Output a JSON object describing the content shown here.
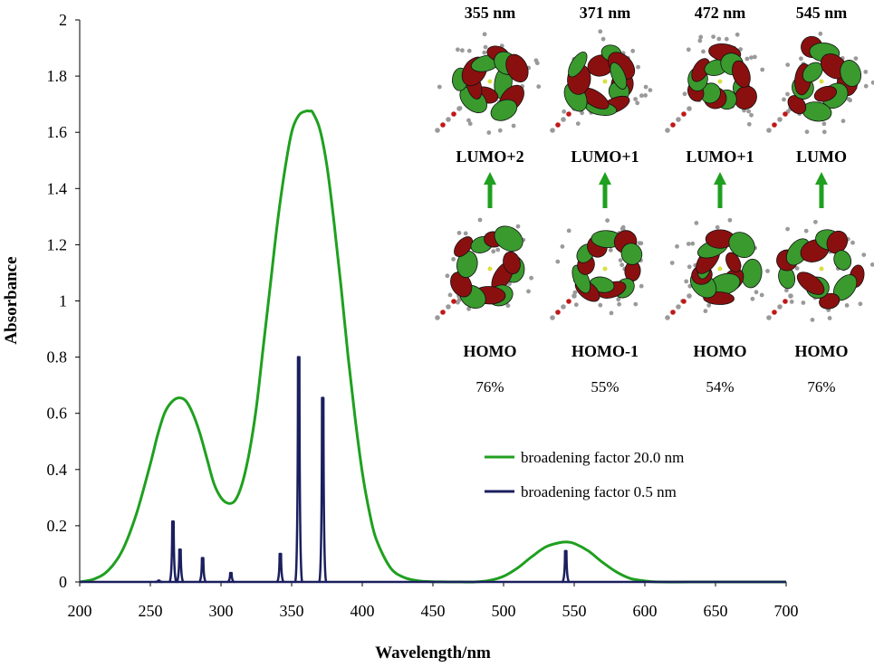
{
  "chart_data": {
    "type": "line",
    "xlabel": "Wavelength/nm",
    "ylabel": "Absorbance",
    "xlim": [
      200,
      700
    ],
    "ylim": [
      0,
      2
    ],
    "xticks": [
      "200",
      "250",
      "300",
      "350",
      "400",
      "450",
      "500",
      "550",
      "600",
      "650",
      "700"
    ],
    "yticks": [
      "0",
      "0.2",
      "0.4",
      "0.6",
      "0.8",
      "1",
      "1.2",
      "1.4",
      "1.6",
      "1.8",
      "2"
    ],
    "grid": false,
    "legend_position": "right",
    "series": [
      {
        "name": "broadening factor 20.0 nm",
        "color": "#1fa01f",
        "kind": "smooth",
        "x": [
          200,
          210,
          220,
          230,
          240,
          250,
          255,
          260,
          265,
          270,
          275,
          280,
          285,
          290,
          295,
          300,
          305,
          310,
          315,
          320,
          325,
          330,
          335,
          340,
          345,
          350,
          355,
          360,
          363,
          365,
          370,
          375,
          380,
          385,
          390,
          395,
          400,
          405,
          410,
          420,
          430,
          440,
          450,
          460,
          470,
          480,
          490,
          500,
          510,
          520,
          530,
          540,
          545,
          550,
          560,
          570,
          580,
          590,
          600,
          610,
          650,
          700
        ],
        "y": [
          0.0,
          0.01,
          0.04,
          0.11,
          0.24,
          0.42,
          0.52,
          0.6,
          0.64,
          0.655,
          0.645,
          0.6,
          0.53,
          0.44,
          0.35,
          0.3,
          0.28,
          0.29,
          0.35,
          0.46,
          0.62,
          0.84,
          1.06,
          1.28,
          1.46,
          1.6,
          1.66,
          1.675,
          1.675,
          1.67,
          1.61,
          1.48,
          1.28,
          1.05,
          0.8,
          0.58,
          0.39,
          0.25,
          0.15,
          0.05,
          0.015,
          0.004,
          0.001,
          0.0,
          0.0,
          0.0,
          0.005,
          0.02,
          0.05,
          0.09,
          0.125,
          0.14,
          0.142,
          0.137,
          0.11,
          0.07,
          0.035,
          0.012,
          0.004,
          0.0,
          0.0,
          0.0
        ]
      },
      {
        "name": "broadening factor 0.5 nm",
        "color": "#1b1f5e",
        "kind": "sticks",
        "x": [
          256,
          266,
          271,
          287,
          307,
          342,
          355,
          372,
          544
        ],
        "y": [
          0.005,
          0.215,
          0.115,
          0.085,
          0.032,
          0.1,
          0.8,
          0.655,
          0.11
        ]
      }
    ],
    "annotations": [
      {
        "wavelength": "355 nm",
        "upper": "LUMO+2",
        "lower": "HOMO",
        "percent": "76%"
      },
      {
        "wavelength": "371 nm",
        "upper": "LUMO+1",
        "lower": "HOMO-1",
        "percent": "55%"
      },
      {
        "wavelength": "472 nm",
        "upper": "LUMO+1",
        "lower": "HOMO",
        "percent": "54%"
      },
      {
        "wavelength": "545 nm",
        "upper": "LUMO",
        "lower": "HOMO",
        "percent": "76%"
      }
    ]
  },
  "colors": {
    "arrow": "#1fa01f",
    "orbital_green": "#3a9a2e",
    "orbital_red": "#8a1010",
    "atom_gray": "#9a9a9a"
  }
}
